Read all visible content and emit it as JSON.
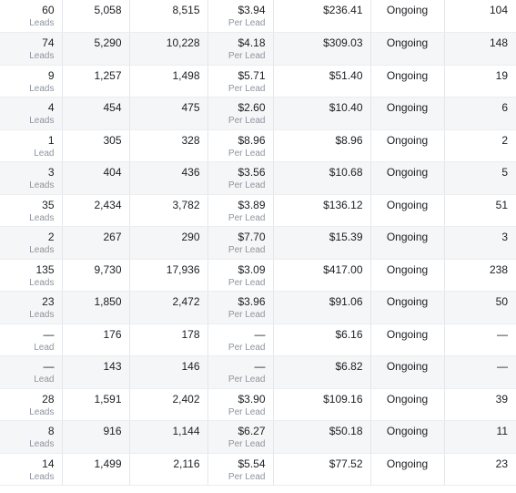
{
  "rows": [
    {
      "results": "60",
      "results_unit": "Leads",
      "reach": "5,058",
      "impressions": "8,515",
      "cost": "$3.94",
      "cost_unit": "Per Lead",
      "spent": "$236.41",
      "status": "Ongoing",
      "last": "104"
    },
    {
      "results": "74",
      "results_unit": "Leads",
      "reach": "5,290",
      "impressions": "10,228",
      "cost": "$4.18",
      "cost_unit": "Per Lead",
      "spent": "$309.03",
      "status": "Ongoing",
      "last": "148"
    },
    {
      "results": "9",
      "results_unit": "Leads",
      "reach": "1,257",
      "impressions": "1,498",
      "cost": "$5.71",
      "cost_unit": "Per Lead",
      "spent": "$51.40",
      "status": "Ongoing",
      "last": "19"
    },
    {
      "results": "4",
      "results_unit": "Leads",
      "reach": "454",
      "impressions": "475",
      "cost": "$2.60",
      "cost_unit": "Per Lead",
      "spent": "$10.40",
      "status": "Ongoing",
      "last": "6"
    },
    {
      "results": "1",
      "results_unit": "Lead",
      "reach": "305",
      "impressions": "328",
      "cost": "$8.96",
      "cost_unit": "Per Lead",
      "spent": "$8.96",
      "status": "Ongoing",
      "last": "2"
    },
    {
      "results": "3",
      "results_unit": "Leads",
      "reach": "404",
      "impressions": "436",
      "cost": "$3.56",
      "cost_unit": "Per Lead",
      "spent": "$10.68",
      "status": "Ongoing",
      "last": "5"
    },
    {
      "results": "35",
      "results_unit": "Leads",
      "reach": "2,434",
      "impressions": "3,782",
      "cost": "$3.89",
      "cost_unit": "Per Lead",
      "spent": "$136.12",
      "status": "Ongoing",
      "last": "51"
    },
    {
      "results": "2",
      "results_unit": "Leads",
      "reach": "267",
      "impressions": "290",
      "cost": "$7.70",
      "cost_unit": "Per Lead",
      "spent": "$15.39",
      "status": "Ongoing",
      "last": "3"
    },
    {
      "results": "135",
      "results_unit": "Leads",
      "reach": "9,730",
      "impressions": "17,936",
      "cost": "$3.09",
      "cost_unit": "Per Lead",
      "spent": "$417.00",
      "status": "Ongoing",
      "last": "238"
    },
    {
      "results": "23",
      "results_unit": "Leads",
      "reach": "1,850",
      "impressions": "2,472",
      "cost": "$3.96",
      "cost_unit": "Per Lead",
      "spent": "$91.06",
      "status": "Ongoing",
      "last": "50"
    },
    {
      "results": "—",
      "results_unit": "Lead",
      "reach": "176",
      "impressions": "178",
      "cost": "—",
      "cost_unit": "Per Lead",
      "spent": "$6.16",
      "status": "Ongoing",
      "last": "—"
    },
    {
      "results": "—",
      "results_unit": "Lead",
      "reach": "143",
      "impressions": "146",
      "cost": "—",
      "cost_unit": "Per Lead",
      "spent": "$6.82",
      "status": "Ongoing",
      "last": "—"
    },
    {
      "results": "28",
      "results_unit": "Leads",
      "reach": "1,591",
      "impressions": "2,402",
      "cost": "$3.90",
      "cost_unit": "Per Lead",
      "spent": "$109.16",
      "status": "Ongoing",
      "last": "39"
    },
    {
      "results": "8",
      "results_unit": "Leads",
      "reach": "916",
      "impressions": "1,144",
      "cost": "$6.27",
      "cost_unit": "Per Lead",
      "spent": "$50.18",
      "status": "Ongoing",
      "last": "11"
    },
    {
      "results": "14",
      "results_unit": "Leads",
      "reach": "1,499",
      "impressions": "2,116",
      "cost": "$5.54",
      "cost_unit": "Per Lead",
      "spent": "$77.52",
      "status": "Ongoing",
      "last": "23"
    }
  ]
}
